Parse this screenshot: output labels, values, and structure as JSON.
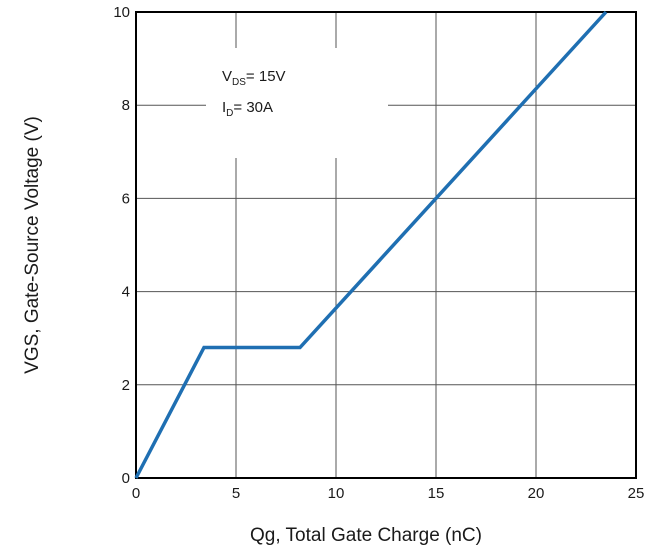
{
  "chart_data": {
    "type": "line",
    "title": "",
    "xlabel": "Qg, Total Gate Charge (nC)",
    "ylabel": "VGS, Gate-Source Voltage (V)",
    "xlim": [
      0,
      25
    ],
    "ylim": [
      0,
      10
    ],
    "x_ticks": [
      0,
      5,
      10,
      15,
      20,
      25
    ],
    "y_ticks": [
      0,
      2,
      4,
      6,
      8,
      10
    ],
    "x_tick_labels": [
      "0",
      "5",
      "10",
      "15",
      "20",
      "25"
    ],
    "y_tick_labels": [
      "0",
      "2",
      "4",
      "6",
      "8",
      "10"
    ],
    "grid": true,
    "legend": "none",
    "series": [
      {
        "color": "#1f6fb2",
        "x": [
          0,
          3.4,
          8.2,
          23.5
        ],
        "y": [
          0,
          2.8,
          2.8,
          10
        ]
      }
    ],
    "annotations": [
      {
        "main": "V",
        "sub": "DS",
        "rest": "= 15V"
      },
      {
        "main": "I",
        "sub": "D",
        "rest": "= 30A"
      }
    ]
  }
}
